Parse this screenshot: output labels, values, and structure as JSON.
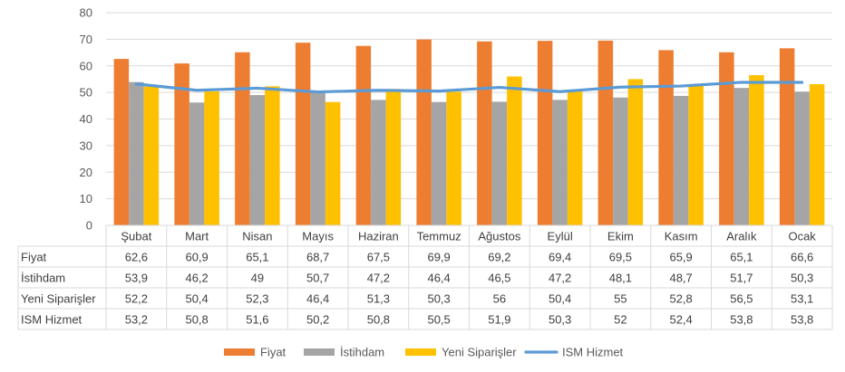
{
  "chart_data": {
    "type": "bar",
    "categories": [
      "Şubat",
      "Mart",
      "Nisan",
      "Mayıs",
      "Haziran",
      "Temmuz",
      "Ağustos",
      "Eylül",
      "Ekim",
      "Kasım",
      "Aralık",
      "Ocak"
    ],
    "series": [
      {
        "name": "Fiyat",
        "type": "bar",
        "color": "#ED7D31",
        "values": [
          62.6,
          60.9,
          65.1,
          68.7,
          67.5,
          69.9,
          69.2,
          69.4,
          69.5,
          65.9,
          65.1,
          66.6
        ]
      },
      {
        "name": "İstihdam",
        "type": "bar",
        "color": "#A5A5A5",
        "values": [
          53.9,
          46.2,
          49,
          50.7,
          47.2,
          46.4,
          46.5,
          47.2,
          48.1,
          48.7,
          51.7,
          50.3
        ]
      },
      {
        "name": "Yeni Siparişler",
        "type": "bar",
        "color": "#FFC000",
        "values": [
          52.2,
          50.4,
          52.3,
          46.4,
          51.3,
          50.3,
          56,
          50.4,
          55,
          52.8,
          56.5,
          53.1
        ]
      },
      {
        "name": "ISM Hizmet",
        "type": "line",
        "color": "#5B9BD5",
        "values": [
          53.2,
          50.8,
          51.6,
          50.2,
          50.8,
          50.5,
          51.9,
          50.3,
          52,
          52.4,
          53.8,
          53.8
        ]
      }
    ],
    "table_values": [
      [
        "62,6",
        "60,9",
        "65,1",
        "68,7",
        "67,5",
        "69,9",
        "69,2",
        "69,4",
        "69,5",
        "65,9",
        "65,1",
        "66,6"
      ],
      [
        "53,9",
        "46,2",
        "49",
        "50,7",
        "47,2",
        "46,4",
        "46,5",
        "47,2",
        "48,1",
        "48,7",
        "51,7",
        "50,3"
      ],
      [
        "52,2",
        "50,4",
        "52,3",
        "46,4",
        "51,3",
        "50,3",
        "56",
        "50,4",
        "55",
        "52,8",
        "56,5",
        "53,1"
      ],
      [
        "53,2",
        "50,8",
        "51,6",
        "50,2",
        "50,8",
        "50,5",
        "51,9",
        "50,3",
        "52",
        "52,4",
        "53,8",
        "53,8"
      ]
    ],
    "y_ticks": [
      "0",
      "10",
      "20",
      "30",
      "40",
      "50",
      "60",
      "70",
      "80"
    ],
    "ylim": [
      0,
      80
    ],
    "grid": true,
    "legend_position": "bottom",
    "data_table": true
  }
}
